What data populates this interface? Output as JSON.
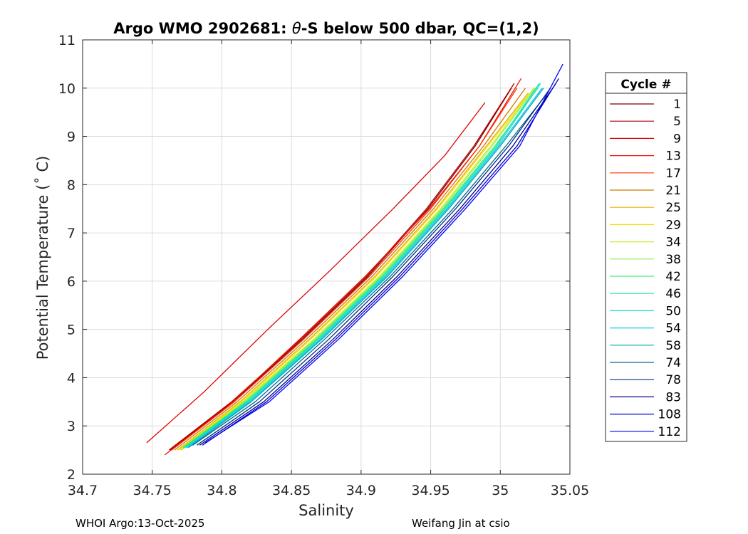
{
  "chart_data": {
    "type": "line",
    "title": "Argo WMO 2902681: θ-S below 500 dbar,  QC=(1,2)",
    "title_prefix": "Argo WMO 2902681: ",
    "title_symbol": "θ",
    "title_suffix": "-S below 500 dbar,  QC=(1,2)",
    "xlabel": "Salinity",
    "ylabel": "Potential Temperature (˚ C)",
    "xlim": [
      34.7,
      35.05
    ],
    "ylim": [
      2,
      11
    ],
    "xticks": [
      34.7,
      34.75,
      34.8,
      34.85,
      34.9,
      34.95,
      35,
      35.05
    ],
    "xtick_labels": [
      "34.7",
      "34.75",
      "34.8",
      "34.85",
      "34.9",
      "34.95",
      "35",
      "35.05"
    ],
    "yticks": [
      2,
      3,
      4,
      5,
      6,
      7,
      8,
      9,
      10,
      11
    ],
    "ytick_labels": [
      "2",
      "3",
      "4",
      "5",
      "6",
      "7",
      "8",
      "9",
      "10",
      "11"
    ],
    "grid": true,
    "legend": {
      "title": "Cycle #",
      "position": "outside-right",
      "entries": [
        {
          "label": "1",
          "color": "#800000"
        },
        {
          "label": "5",
          "color": "#b00000"
        },
        {
          "label": "9",
          "color": "#dd0000"
        },
        {
          "label": "13",
          "color": "#ee1000"
        },
        {
          "label": "17",
          "color": "#ff3000"
        },
        {
          "label": "21",
          "color": "#d07800"
        },
        {
          "label": "25",
          "color": "#e8b000"
        },
        {
          "label": "29",
          "color": "#f5e000"
        },
        {
          "label": "34",
          "color": "#d0ee30"
        },
        {
          "label": "38",
          "color": "#90ee50"
        },
        {
          "label": "42",
          "color": "#40ee70"
        },
        {
          "label": "46",
          "color": "#20e0a0"
        },
        {
          "label": "50",
          "color": "#10e0d0"
        },
        {
          "label": "54",
          "color": "#10c8e8"
        },
        {
          "label": "58",
          "color": "#00a8b8"
        },
        {
          "label": "74",
          "color": "#006890"
        },
        {
          "label": "78",
          "color": "#003080"
        },
        {
          "label": "83",
          "color": "#000090"
        },
        {
          "label": "108",
          "color": "#0000c8"
        },
        {
          "label": "112",
          "color": "#0000ff"
        }
      ]
    },
    "series": [
      {
        "name": "1",
        "color": "#800000",
        "x": [
          34.763,
          34.808,
          34.858,
          34.905,
          34.948,
          34.982,
          35.008
        ],
        "y": [
          2.5,
          3.5,
          4.8,
          6.1,
          7.5,
          8.8,
          10.0
        ]
      },
      {
        "name": "5",
        "color": "#b00000",
        "x": [
          34.762,
          34.807,
          34.857,
          34.904,
          34.947,
          34.981,
          35.01
        ],
        "y": [
          2.5,
          3.5,
          4.8,
          6.1,
          7.5,
          8.8,
          10.1
        ]
      },
      {
        "name": "9",
        "color": "#dd0000",
        "x": [
          34.746,
          34.787,
          34.833,
          34.877,
          34.923,
          34.96,
          34.989
        ],
        "y": [
          2.65,
          3.7,
          5.0,
          6.2,
          7.5,
          8.6,
          9.7
        ]
      },
      {
        "name": "13",
        "color": "#ee1000",
        "x": [
          34.759,
          34.804,
          34.856,
          34.903,
          34.949,
          34.985,
          35.015
        ],
        "y": [
          2.4,
          3.4,
          4.8,
          6.1,
          7.5,
          8.8,
          10.2
        ]
      },
      {
        "name": "17",
        "color": "#ff3000",
        "x": [
          34.764,
          34.809,
          34.859,
          34.906,
          34.95,
          34.985,
          35.012
        ],
        "y": [
          2.5,
          3.5,
          4.8,
          6.1,
          7.5,
          8.8,
          10.0
        ]
      },
      {
        "name": "21",
        "color": "#d07800",
        "x": [
          34.766,
          34.811,
          34.861,
          34.908,
          34.952,
          34.988,
          35.018
        ],
        "y": [
          2.5,
          3.5,
          4.8,
          6.1,
          7.5,
          8.8,
          10.0
        ]
      },
      {
        "name": "25",
        "color": "#e8b000",
        "x": [
          34.768,
          34.813,
          34.863,
          34.91,
          34.954,
          34.99,
          35.02
        ],
        "y": [
          2.5,
          3.5,
          4.8,
          6.1,
          7.5,
          8.8,
          9.9
        ]
      },
      {
        "name": "29",
        "color": "#f5e000",
        "x": [
          34.769,
          34.814,
          34.864,
          34.911,
          34.955,
          34.991,
          35.021
        ],
        "y": [
          2.5,
          3.5,
          4.8,
          6.1,
          7.5,
          8.8,
          9.9
        ]
      },
      {
        "name": "34",
        "color": "#d0ee30",
        "x": [
          34.77,
          34.815,
          34.866,
          34.913,
          34.957,
          34.993,
          35.024
        ],
        "y": [
          2.5,
          3.5,
          4.8,
          6.1,
          7.5,
          8.8,
          10.0
        ]
      },
      {
        "name": "38",
        "color": "#90ee50",
        "x": [
          34.771,
          34.816,
          34.867,
          34.914,
          34.958,
          34.994,
          35.025
        ],
        "y": [
          2.5,
          3.5,
          4.8,
          6.1,
          7.5,
          8.8,
          10.0
        ]
      },
      {
        "name": "42",
        "color": "#40ee70",
        "x": [
          34.772,
          34.817,
          34.868,
          34.915,
          34.959,
          34.996,
          35.027
        ],
        "y": [
          2.55,
          3.5,
          4.8,
          6.1,
          7.5,
          8.8,
          10.0
        ]
      },
      {
        "name": "46",
        "color": "#20e0a0",
        "x": [
          34.773,
          34.818,
          34.869,
          34.916,
          34.96,
          34.997,
          35.028
        ],
        "y": [
          2.55,
          3.5,
          4.8,
          6.1,
          7.5,
          8.8,
          10.1
        ]
      },
      {
        "name": "50",
        "color": "#10e0d0",
        "x": [
          34.774,
          34.819,
          34.87,
          34.917,
          34.961,
          34.998,
          35.029
        ],
        "y": [
          2.55,
          3.5,
          4.8,
          6.1,
          7.5,
          8.8,
          10.1
        ]
      },
      {
        "name": "54",
        "color": "#10c8e8",
        "x": [
          34.775,
          34.82,
          34.871,
          34.918,
          34.962,
          34.999,
          35.03
        ],
        "y": [
          2.55,
          3.5,
          4.8,
          6.1,
          7.5,
          8.8,
          10.0
        ]
      },
      {
        "name": "58",
        "color": "#00a8b8",
        "x": [
          34.776,
          34.821,
          34.872,
          34.919,
          34.963,
          35.0,
          35.031
        ],
        "y": [
          2.55,
          3.5,
          4.8,
          6.1,
          7.5,
          8.8,
          10.0
        ]
      },
      {
        "name": "74",
        "color": "#006890",
        "x": [
          34.779,
          34.824,
          34.874,
          34.921,
          34.966,
          35.004,
          35.034
        ],
        "y": [
          2.6,
          3.5,
          4.8,
          6.1,
          7.5,
          8.8,
          9.9
        ]
      },
      {
        "name": "78",
        "color": "#003080",
        "x": [
          34.782,
          34.827,
          34.877,
          34.923,
          34.968,
          35.006,
          35.036
        ],
        "y": [
          2.6,
          3.5,
          4.8,
          6.1,
          7.5,
          8.8,
          10.0
        ]
      },
      {
        "name": "83",
        "color": "#000090",
        "x": [
          34.784,
          34.83,
          34.88,
          34.926,
          34.971,
          35.009,
          35.04
        ],
        "y": [
          2.6,
          3.5,
          4.8,
          6.1,
          7.5,
          8.8,
          10.1
        ]
      },
      {
        "name": "108",
        "color": "#0000c8",
        "x": [
          34.786,
          34.832,
          34.882,
          34.928,
          34.973,
          35.012,
          35.042
        ],
        "y": [
          2.6,
          3.5,
          4.8,
          6.1,
          7.5,
          8.8,
          10.2
        ]
      },
      {
        "name": "112",
        "color": "#0000ff",
        "x": [
          34.788,
          34.834,
          34.884,
          34.93,
          34.975,
          35.014,
          35.045
        ],
        "y": [
          2.65,
          3.5,
          4.8,
          6.1,
          7.5,
          8.8,
          10.5
        ]
      }
    ]
  },
  "footer": {
    "left": "WHOI Argo:13-Oct-2025",
    "right": "Weifang Jin at csio"
  }
}
